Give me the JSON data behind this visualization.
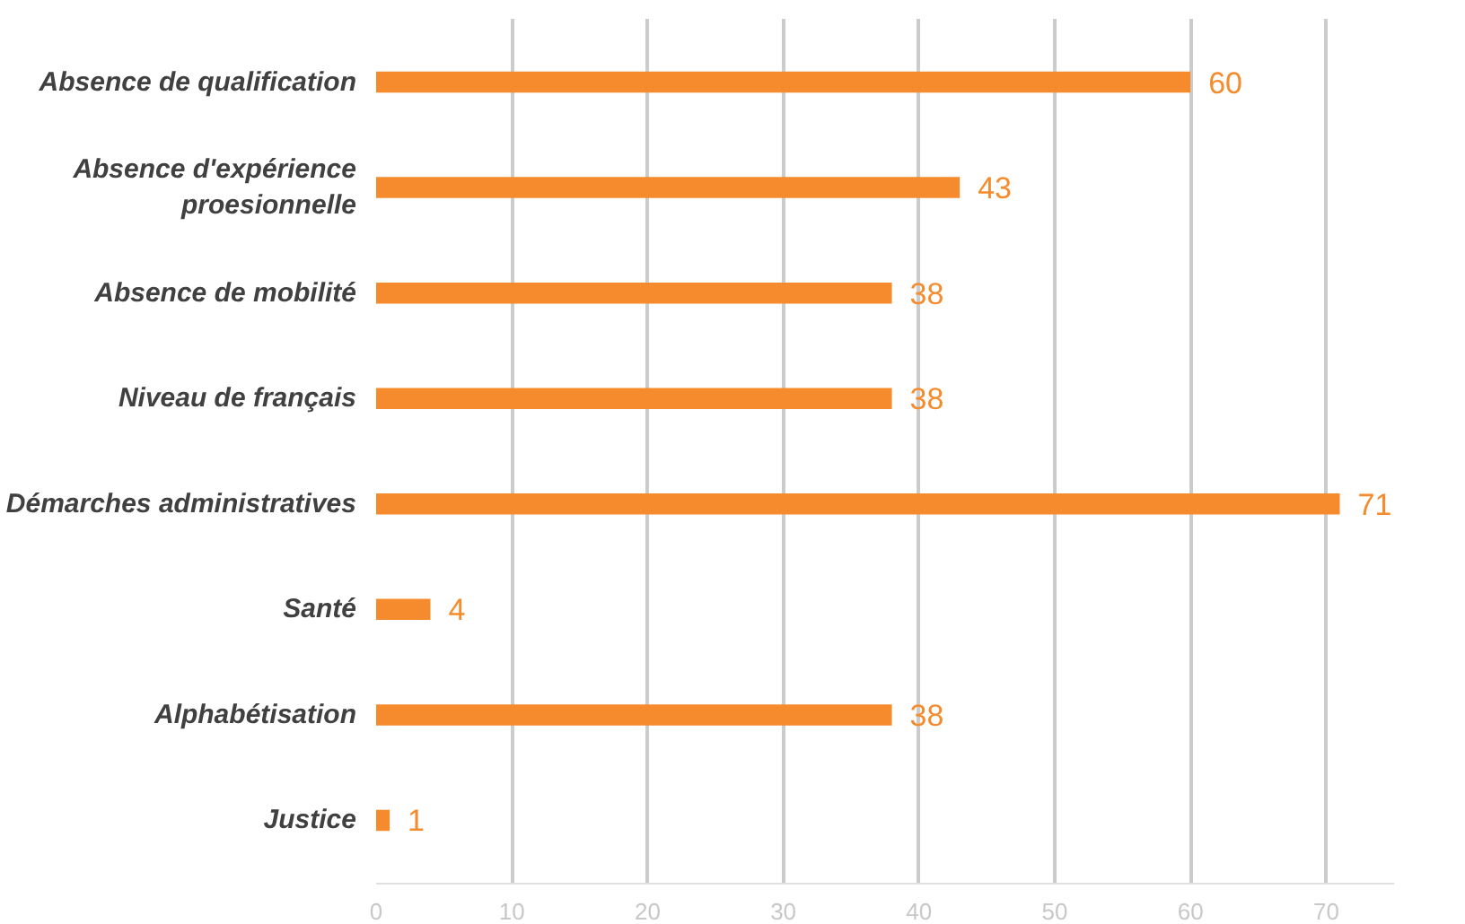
{
  "chart_data": {
    "type": "bar",
    "orientation": "horizontal",
    "categories": [
      "Absence de qualification",
      "Absence d'expérience\nproesionnelle",
      "Absence de mobilité",
      "Niveau de français",
      "Démarches administratives",
      "Santé",
      "Alphabétisation",
      "Justice"
    ],
    "values": [
      60,
      43,
      38,
      38,
      71,
      4,
      38,
      1
    ],
    "color": "#f58b2c",
    "xlim": [
      0,
      75
    ],
    "xticks": [
      0,
      10,
      20,
      30,
      40,
      50,
      60,
      70
    ],
    "grid": "x",
    "data_labels": true
  }
}
